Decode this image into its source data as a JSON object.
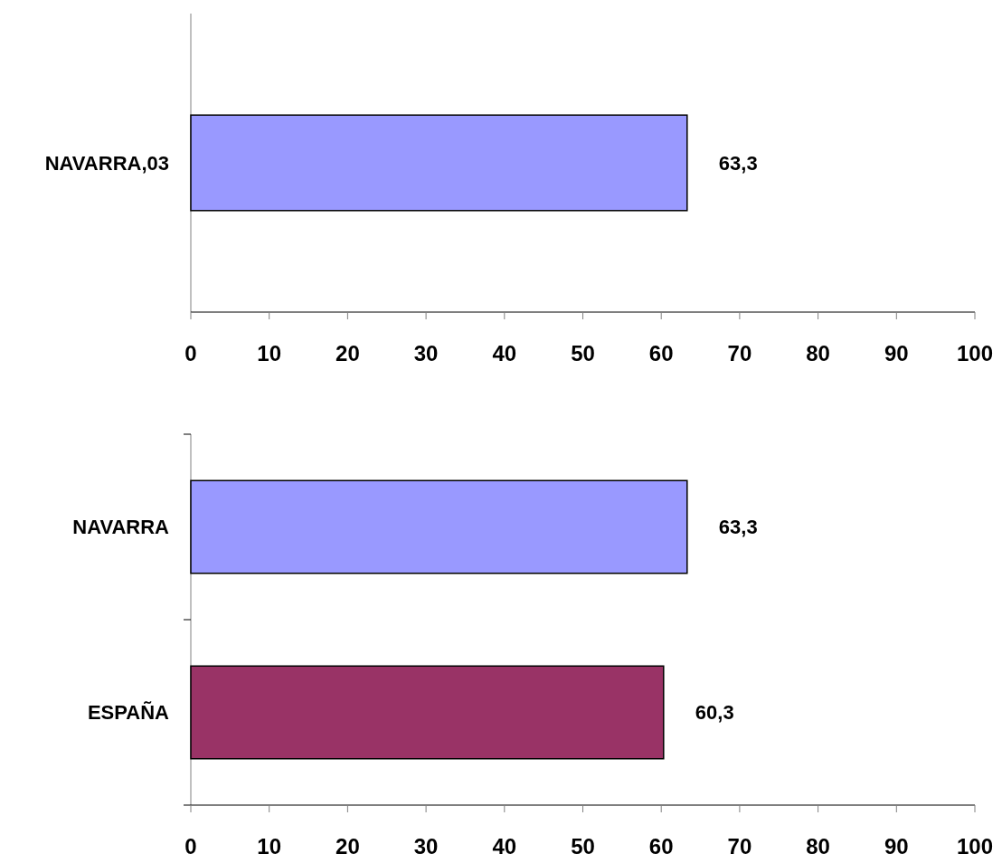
{
  "chart_data": [
    {
      "type": "bar",
      "orientation": "horizontal",
      "categories": [
        "NAVARRA,03"
      ],
      "values": [
        63.3
      ],
      "colors": [
        "#9999ff"
      ],
      "value_labels": [
        "63,3"
      ],
      "xlim": [
        0,
        100
      ],
      "xticks": [
        0,
        10,
        20,
        30,
        40,
        50,
        60,
        70,
        80,
        90,
        100
      ],
      "grid": false
    },
    {
      "type": "bar",
      "orientation": "horizontal",
      "categories": [
        "NAVARRA",
        "ESPAÑA"
      ],
      "values": [
        63.3,
        60.3
      ],
      "colors": [
        "#9999ff",
        "#993366"
      ],
      "value_labels": [
        "63,3",
        "60,3"
      ],
      "xlim": [
        0,
        100
      ],
      "xticks": [
        0,
        10,
        20,
        30,
        40,
        50,
        60,
        70,
        80,
        90,
        100
      ],
      "grid": false
    }
  ]
}
